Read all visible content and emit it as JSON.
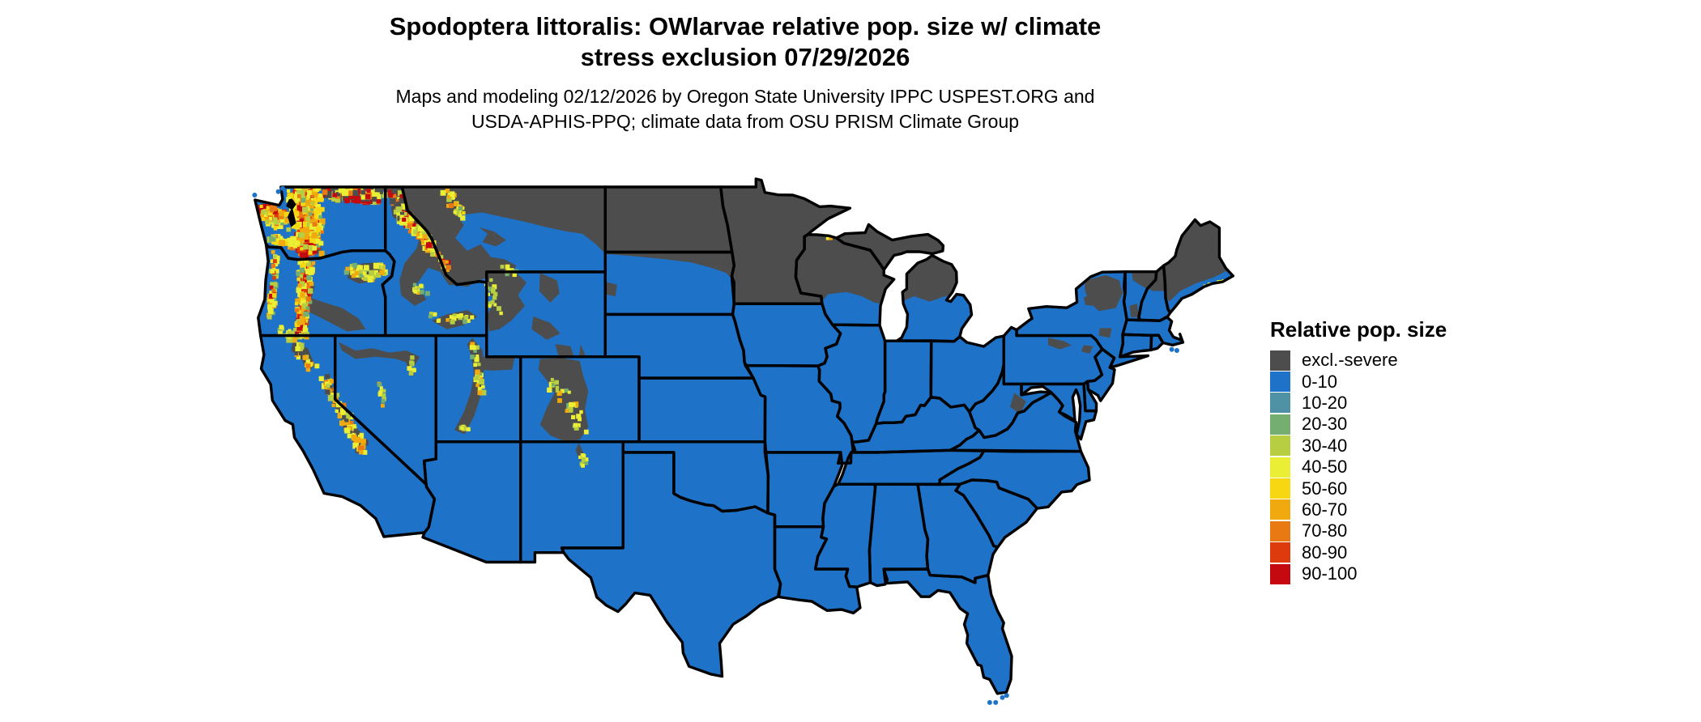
{
  "title": {
    "line1": "Spodoptera littoralis: OWlarvae relative pop. size w/ climate",
    "line2": "stress exclusion 07/29/2026"
  },
  "subtitle": {
    "line1": "Maps and modeling 02/12/2026 by Oregon State University IPPC USPEST.ORG and",
    "line2": "USDA-APHIS-PPQ; climate data from OSU PRISM Climate Group"
  },
  "legend": {
    "title": "Relative pop. size",
    "items": [
      {
        "label": "excl.-severe",
        "color": "#4d4d4d"
      },
      {
        "label": "0-10",
        "color": "#1e73c8"
      },
      {
        "label": "10-20",
        "color": "#4f92a6"
      },
      {
        "label": "20-30",
        "color": "#74ae71"
      },
      {
        "label": "30-40",
        "color": "#b7cd42"
      },
      {
        "label": "40-50",
        "color": "#eaee35"
      },
      {
        "label": "50-60",
        "color": "#f6d711"
      },
      {
        "label": "60-70",
        "color": "#f0a90e"
      },
      {
        "label": "70-80",
        "color": "#e97912"
      },
      {
        "label": "80-90",
        "color": "#dd3b0d"
      },
      {
        "label": "90-100",
        "color": "#c40a10"
      }
    ]
  },
  "map": {
    "background": "#ffffff",
    "land_base": "#1e73c8",
    "exclusion": "#4d4d4d",
    "border": "#000000",
    "water": "#000000"
  }
}
